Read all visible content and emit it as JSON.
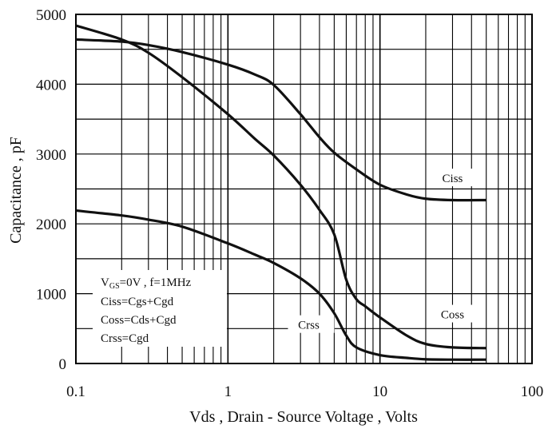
{
  "chart_data": {
    "type": "line",
    "xscale": "log",
    "xlim": [
      0.1,
      100
    ],
    "ylim": [
      0,
      5000
    ],
    "xlabel": "Vds , Drain - Source Voltage , Volts",
    "ylabel": "Capacitance , pF",
    "grid": true,
    "x_ticks": [
      {
        "value": 0.1,
        "label": "0.1"
      },
      {
        "value": 1,
        "label": "1"
      },
      {
        "value": 10,
        "label": "10"
      },
      {
        "value": 100,
        "label": "100"
      }
    ],
    "y_ticks": [
      {
        "value": 0,
        "label": "0"
      },
      {
        "value": 1000,
        "label": "1000"
      },
      {
        "value": 2000,
        "label": "2000"
      },
      {
        "value": 3000,
        "label": "3000"
      },
      {
        "value": 4000,
        "label": "4000"
      },
      {
        "value": 5000,
        "label": "5000"
      }
    ],
    "series": [
      {
        "name": "Ciss",
        "x": [
          0.1,
          0.2,
          0.3,
          0.5,
          1,
          1.5,
          2,
          3,
          4,
          5,
          7,
          10,
          15,
          20,
          30,
          50
        ],
        "y": [
          4640,
          4610,
          4560,
          4460,
          4280,
          4140,
          3990,
          3570,
          3240,
          3020,
          2780,
          2560,
          2420,
          2360,
          2340,
          2340
        ]
      },
      {
        "name": "Coss",
        "x": [
          0.1,
          0.2,
          0.3,
          0.5,
          1,
          1.5,
          2,
          3,
          4,
          5,
          6,
          7,
          8,
          10,
          15,
          20,
          30,
          50
        ],
        "y": [
          4840,
          4640,
          4450,
          4100,
          3570,
          3220,
          2980,
          2560,
          2200,
          1850,
          1200,
          920,
          820,
          660,
          400,
          280,
          230,
          220
        ]
      },
      {
        "name": "Crss",
        "x": [
          0.1,
          0.2,
          0.3,
          0.5,
          1,
          1.5,
          2,
          3,
          4,
          5,
          6,
          7,
          10,
          15,
          20,
          30,
          50
        ],
        "y": [
          2190,
          2120,
          2060,
          1960,
          1720,
          1560,
          1440,
          1220,
          1000,
          720,
          400,
          230,
          120,
          80,
          60,
          55,
          55
        ]
      }
    ],
    "curve_labels": [
      {
        "text": "Ciss",
        "x": 30,
        "y": 2630
      },
      {
        "text": "Coss",
        "x": 30,
        "y": 680
      },
      {
        "text": "Crss",
        "x": 3.4,
        "y": 530
      }
    ],
    "conditions": [
      "VGS=0V , f=1MHz",
      "Ciss=Cgs+Cgd",
      "Coss=Cds+Cgd",
      "Crss=Cgd"
    ]
  }
}
